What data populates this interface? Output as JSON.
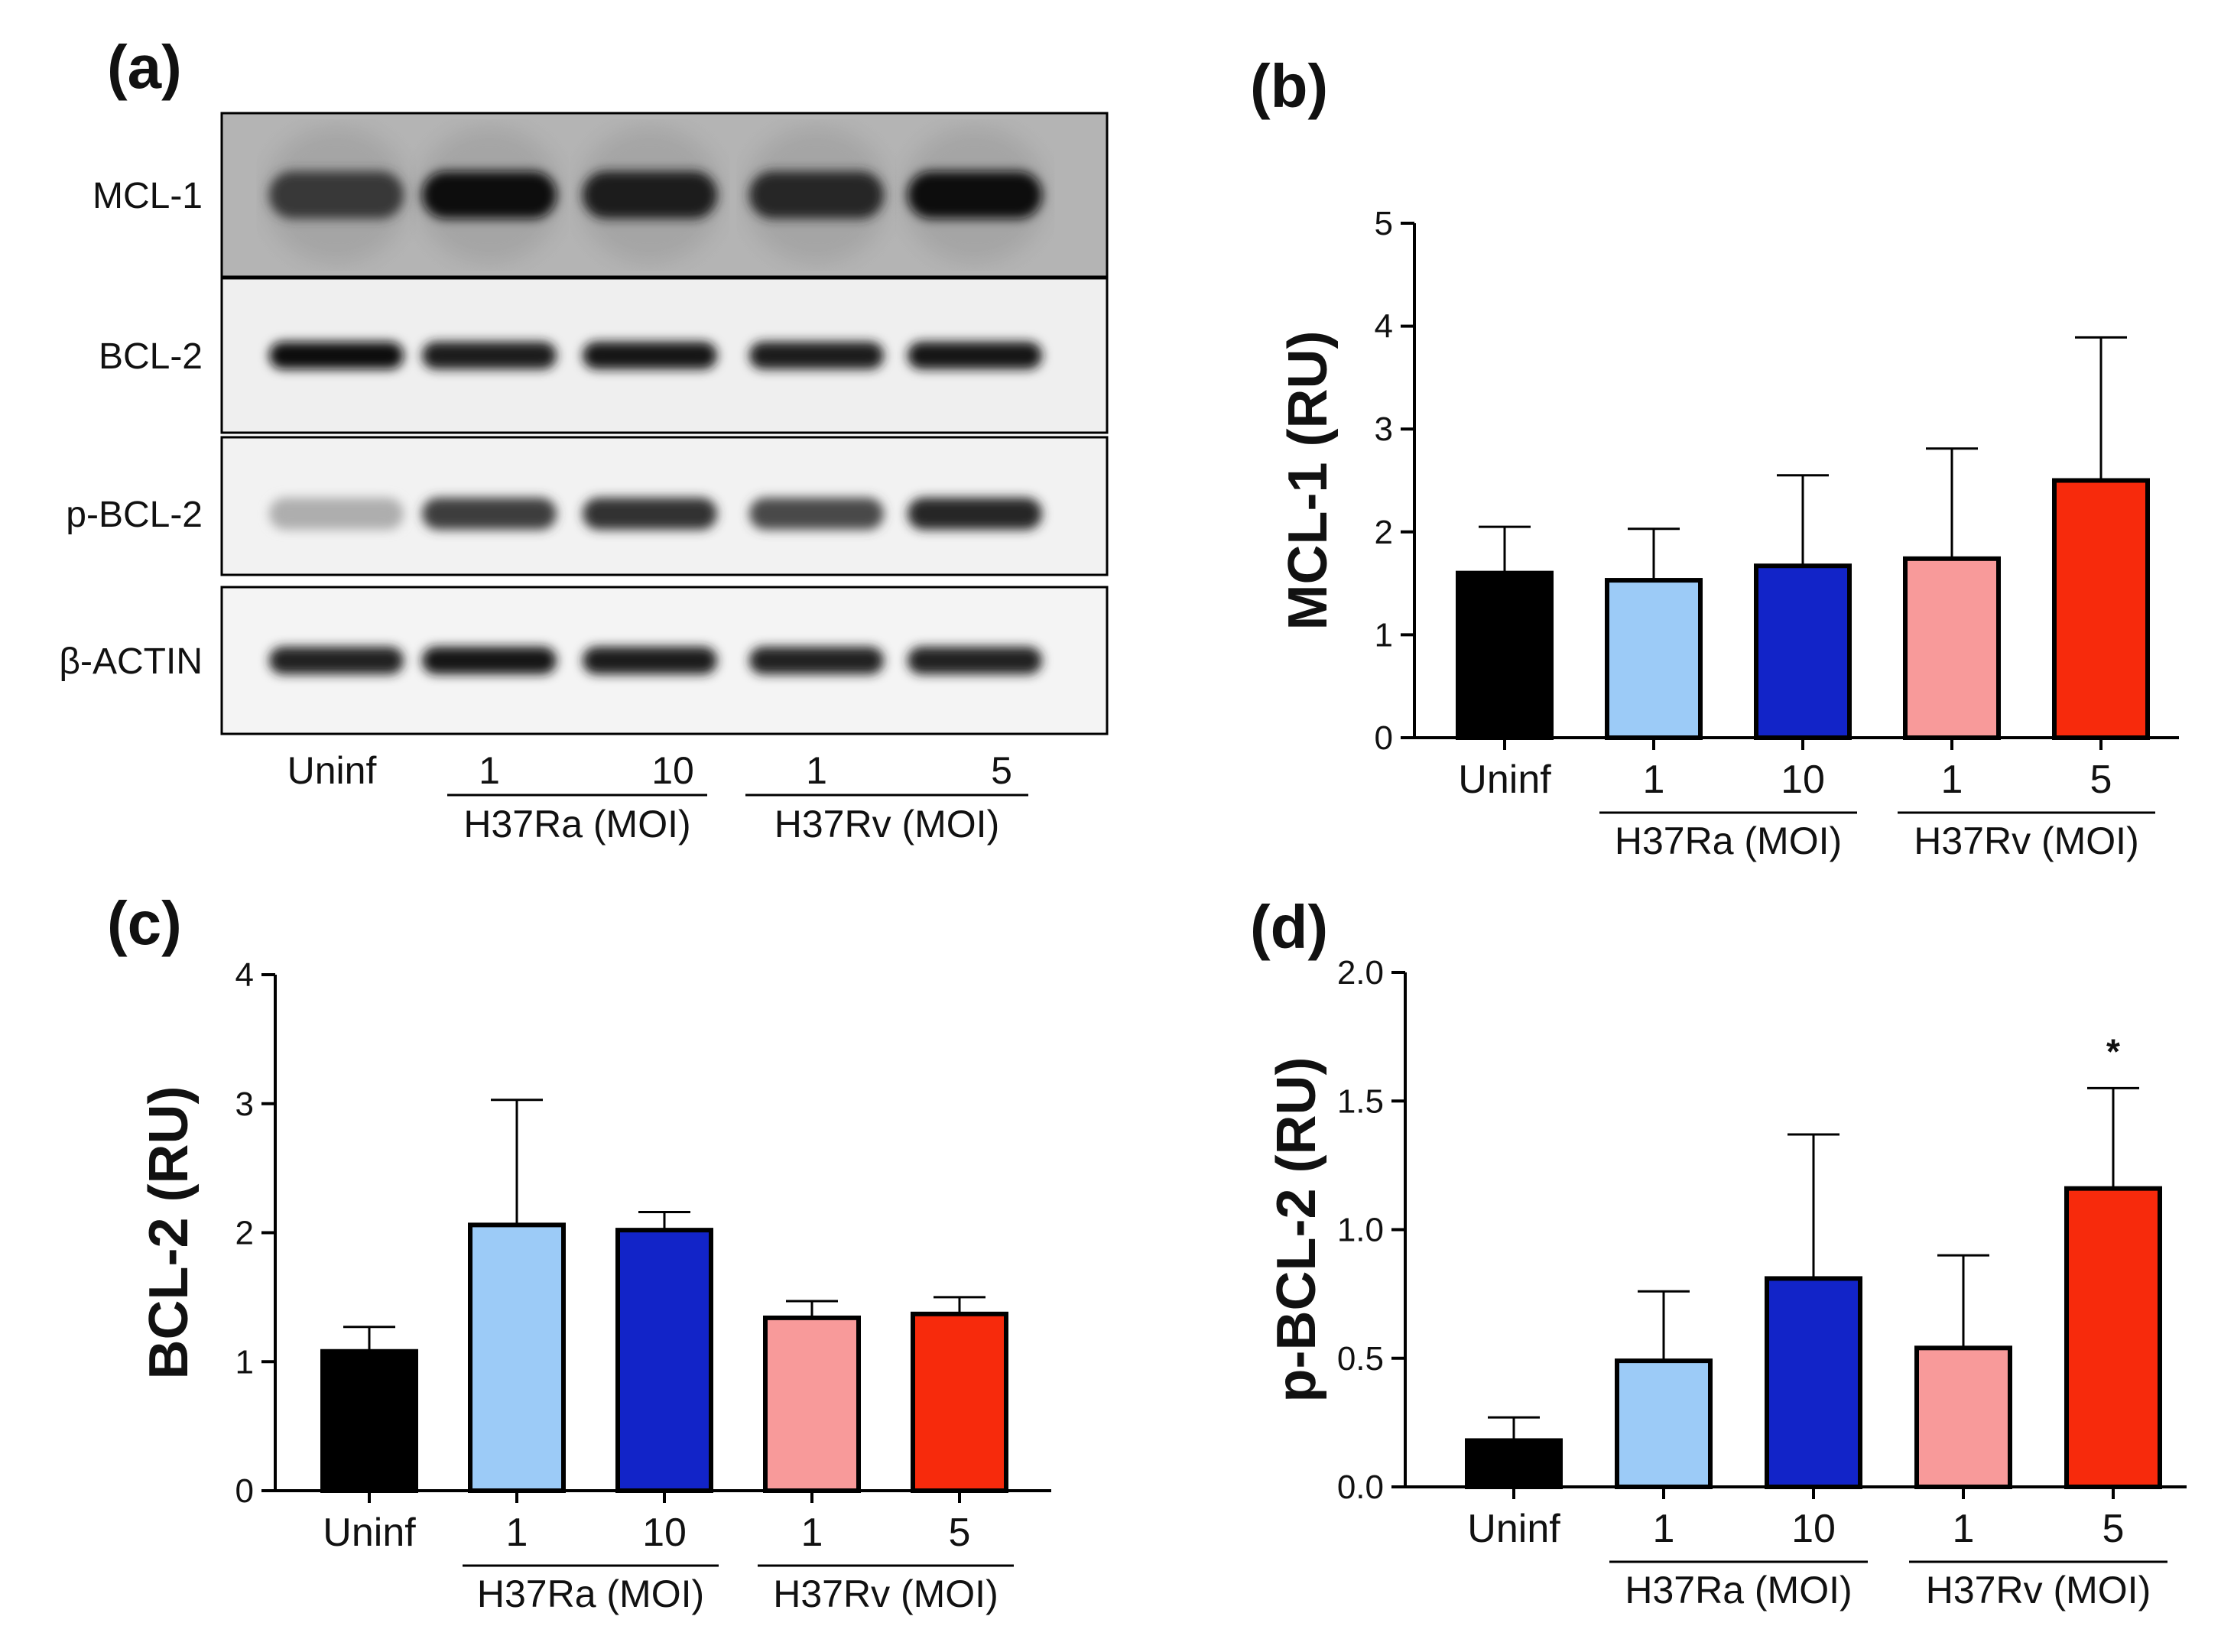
{
  "figure": {
    "panels": [
      "(a)",
      "(b)",
      "(c)",
      "(d)"
    ]
  },
  "blot": {
    "rows": [
      {
        "label": "MCL-1",
        "intensities": [
          0.78,
          0.95,
          0.9,
          0.85,
          0.95
        ]
      },
      {
        "label": "BCL-2",
        "intensities": [
          0.95,
          0.9,
          0.92,
          0.9,
          0.92
        ]
      },
      {
        "label": "p-BCL-2",
        "intensities": [
          0.25,
          0.75,
          0.8,
          0.7,
          0.85
        ]
      },
      {
        "label": "β-ACTIN",
        "intensities": [
          0.88,
          0.92,
          0.9,
          0.88,
          0.88
        ]
      }
    ],
    "lanes": [
      "Uninf",
      "1",
      "10",
      "1",
      "5"
    ],
    "groups": [
      "H37Ra (MOI)",
      "H37Rv (MOI)"
    ]
  },
  "chart_data": [
    {
      "panel": "(b)",
      "type": "bar",
      "categories": [
        "Uninf",
        "1",
        "10",
        "1",
        "5"
      ],
      "groups": [
        {
          "label": "H37Ra (MOI)",
          "from": 1,
          "to": 2
        },
        {
          "label": "H37Rv (MOI)",
          "from": 3,
          "to": 4
        }
      ],
      "values": [
        1.6,
        1.53,
        1.67,
        1.74,
        2.5
      ],
      "errors": [
        0.45,
        0.5,
        0.88,
        1.07,
        1.39
      ],
      "colors": [
        "#000000",
        "#9ccbf7",
        "#1224c8",
        "#f89a9a",
        "#f72a0c"
      ],
      "ylabel": "MCL-1 (RU)",
      "ylim": [
        0,
        5
      ],
      "yticks": [
        0,
        1,
        2,
        3,
        4,
        5
      ],
      "ytick_labels": [
        "0",
        "1",
        "2",
        "3",
        "4",
        "5"
      ],
      "annotations": []
    },
    {
      "panel": "(c)",
      "type": "bar",
      "categories": [
        "Uninf",
        "1",
        "10",
        "1",
        "5"
      ],
      "groups": [
        {
          "label": "H37Ra (MOI)",
          "from": 1,
          "to": 2
        },
        {
          "label": "H37Rv (MOI)",
          "from": 3,
          "to": 4
        }
      ],
      "values": [
        1.08,
        2.06,
        2.02,
        1.34,
        1.37
      ],
      "errors": [
        0.19,
        0.97,
        0.14,
        0.13,
        0.13
      ],
      "colors": [
        "#000000",
        "#9ccbf7",
        "#1224c8",
        "#f89a9a",
        "#f72a0c"
      ],
      "ylabel": "BCL-2 (RU)",
      "ylim": [
        0,
        4
      ],
      "yticks": [
        0,
        1,
        2,
        3,
        4
      ],
      "ytick_labels": [
        "0",
        "1",
        "2",
        "3",
        "4"
      ],
      "annotations": []
    },
    {
      "panel": "(d)",
      "type": "bar",
      "categories": [
        "Uninf",
        "1",
        "10",
        "1",
        "5"
      ],
      "groups": [
        {
          "label": "H37Ra (MOI)",
          "from": 1,
          "to": 2
        },
        {
          "label": "H37Rv (MOI)",
          "from": 3,
          "to": 4
        }
      ],
      "values": [
        0.18,
        0.49,
        0.81,
        0.54,
        1.16
      ],
      "errors": [
        0.09,
        0.27,
        0.56,
        0.36,
        0.39
      ],
      "colors": [
        "#000000",
        "#9ccbf7",
        "#1224c8",
        "#f89a9a",
        "#f72a0c"
      ],
      "ylabel": "p-BCL-2 (RU)",
      "ylim": [
        0,
        2
      ],
      "yticks": [
        0,
        0.5,
        1,
        1.5,
        2
      ],
      "ytick_labels": [
        "0.0",
        "0.5",
        "1.0",
        "1.5",
        "2.0"
      ],
      "annotations": [
        {
          "index": 4,
          "text": "*"
        }
      ]
    }
  ]
}
